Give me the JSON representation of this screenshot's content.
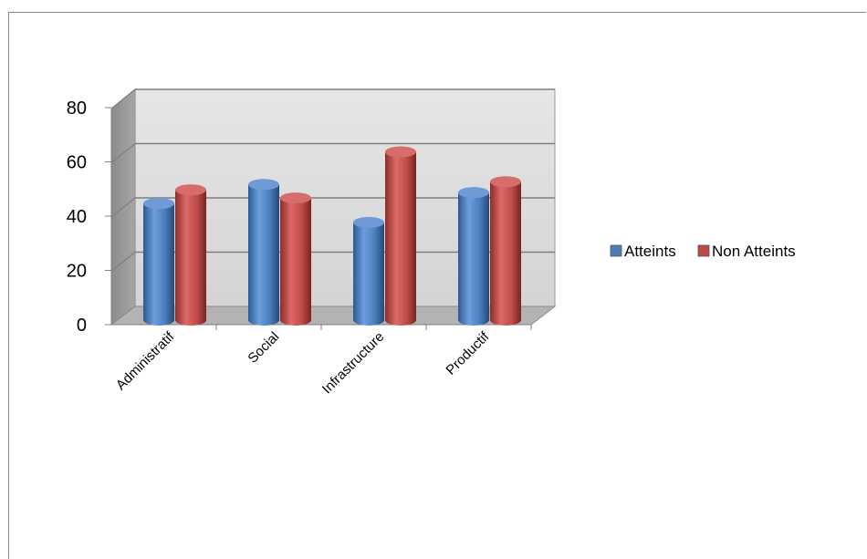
{
  "chart_data": {
    "type": "bar",
    "title": "",
    "xlabel": "",
    "ylabel": "",
    "categories": [
      "Administratif",
      "Social",
      "Infrastructure",
      "Productif"
    ],
    "series": [
      {
        "name": "Atteints",
        "values": [
          43,
          50,
          36,
          47
        ],
        "color": "#4a7ebb"
      },
      {
        "name": "Non Atteints",
        "values": [
          48,
          45,
          62,
          51
        ],
        "color": "#be4b48"
      }
    ],
    "ylim": [
      0,
      80
    ],
    "yticks": [
      "0",
      "20",
      "40",
      "60",
      "80"
    ],
    "grid": true,
    "legend_position": "right",
    "style": "3d-cylinder"
  }
}
